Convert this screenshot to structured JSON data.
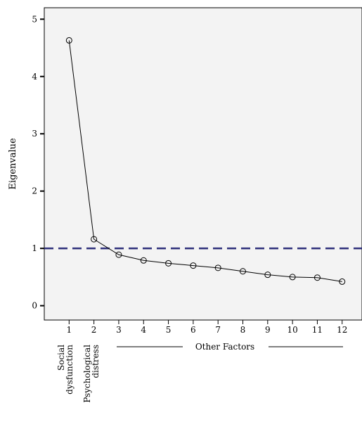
{
  "chart_data": {
    "type": "line",
    "title": "",
    "xlabel": "",
    "ylabel": "Eigenvalue",
    "x": [
      1,
      2,
      3,
      4,
      5,
      6,
      7,
      8,
      9,
      10,
      11,
      12
    ],
    "y": [
      4.63,
      1.16,
      0.89,
      0.79,
      0.74,
      0.7,
      0.66,
      0.6,
      0.54,
      0.5,
      0.49,
      0.42
    ],
    "xticks": [
      "1",
      "2",
      "3",
      "4",
      "5",
      "6",
      "7",
      "8",
      "9",
      "10",
      "11",
      "12"
    ],
    "yticks": [
      "0",
      "1",
      "2",
      "3",
      "4",
      "5"
    ],
    "ylim": [
      -0.25,
      5.2
    ],
    "xlim": [
      0,
      12.8
    ],
    "grid": false,
    "reference_line": {
      "y": 1,
      "style": "dashed",
      "color": "#2e2f7a"
    },
    "line_color": "#000000",
    "plot_background": "#f3f3f3",
    "category_labels": {
      "factor1": [
        "Social",
        "dysfunction"
      ],
      "factor2": [
        "Psychological",
        "distress"
      ],
      "others": "Other Factors"
    }
  }
}
